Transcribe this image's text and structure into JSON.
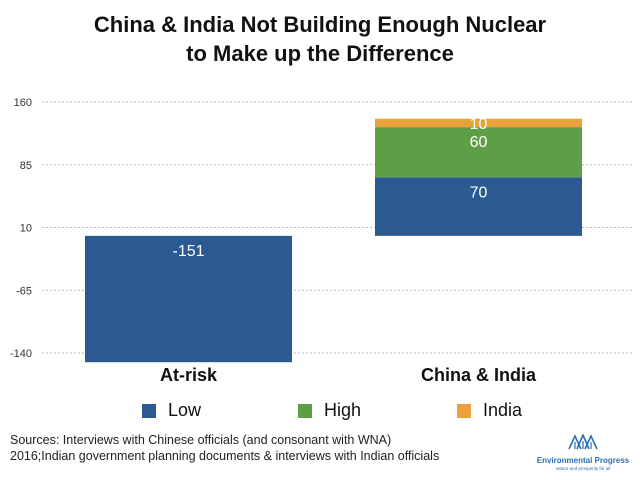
{
  "title_lines": [
    "China & India Not Building Enough Nuclear",
    "to Make up the Difference"
  ],
  "chart_data": {
    "type": "bar",
    "stacked": true,
    "categories": [
      "At-risk",
      "China & India"
    ],
    "series": [
      {
        "name": "Low",
        "color": "#2b5a92",
        "values": [
          -151,
          70
        ]
      },
      {
        "name": "High",
        "color": "#5d9e47",
        "values": [
          0,
          60
        ]
      },
      {
        "name": "India",
        "color": "#eaa13b",
        "values": [
          0,
          10
        ]
      }
    ],
    "data_labels": [
      {
        "category": "At-risk",
        "series": "Low",
        "text": "-151"
      },
      {
        "category": "China & India",
        "series": "Low",
        "text": "70"
      },
      {
        "category": "China & India",
        "series": "High",
        "text": "60"
      },
      {
        "category": "China & India",
        "series": "India",
        "text": "10"
      }
    ],
    "yticks": [
      160,
      85,
      10,
      -65,
      -140
    ],
    "ylim": [
      -140,
      160
    ],
    "grid": true,
    "legend_position": "bottom",
    "title": "China & India Not Building Enough Nuclear to Make up the Difference",
    "xlabel": "",
    "ylabel": ""
  },
  "sources_lines": [
    "Sources: Interviews with Chinese officials (and consonant with WNA)",
    "2016;Indian government planning documents & interviews with Indian officials"
  ],
  "logo": {
    "name": "Environmental Progress",
    "tagline": "nature and prosperity for all"
  }
}
